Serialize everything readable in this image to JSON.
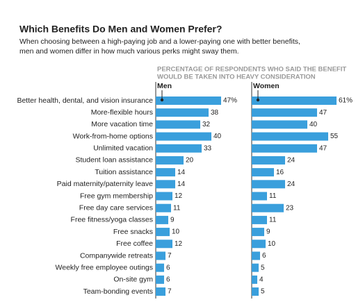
{
  "chart_data": {
    "type": "bar",
    "orientation": "horizontal",
    "title": "Which Benefits Do Men and Women Prefer?",
    "subtitle": [
      "When choosing between a high-paying job and a lower-paying one with better benefits,",
      "men and women differ in how much various perks might sway them."
    ],
    "axis_title": [
      "PERCENTAGE OF RESPONDENTS WHO SAID THE BENEFIT",
      "WOULD BE TAKEN INTO HEAVY CONSIDERATION"
    ],
    "categories": [
      "Better health, dental, and vision insurance",
      "More-flexible hours",
      "More vacation time",
      "Work-from-home options",
      "Unlimited vacation",
      "Student loan assistance",
      "Tuition assistance",
      "Paid maternity/paternity leave",
      "Free gym membership",
      "Free day care services",
      "Free fitness/yoga classes",
      "Free snacks",
      "Free coffee",
      "Companywide retreats",
      "Weekly free employee outings",
      "On-site gym",
      "Team-bonding events"
    ],
    "xlim": [
      0,
      65
    ],
    "series": [
      {
        "name": "Men",
        "color": "#3a9fdc",
        "values": [
          47,
          38,
          32,
          40,
          33,
          20,
          14,
          14,
          12,
          11,
          9,
          10,
          12,
          7,
          6,
          6,
          7
        ],
        "value_labels": [
          "47%",
          "38",
          "32",
          "40",
          "33",
          "20",
          "14",
          "14",
          "12",
          "11",
          "9",
          "10",
          "12",
          "7",
          "6",
          "6",
          "7"
        ]
      },
      {
        "name": "Women",
        "color": "#3a9fdc",
        "values": [
          61,
          47,
          40,
          55,
          47,
          24,
          16,
          24,
          11,
          23,
          11,
          9,
          10,
          6,
          5,
          4,
          5
        ],
        "value_labels": [
          "61%",
          "47",
          "40",
          "55",
          "47",
          "24",
          "16",
          "24",
          "11",
          "23",
          "11",
          "9",
          "10",
          "6",
          "5",
          "4",
          "5"
        ]
      }
    ]
  }
}
